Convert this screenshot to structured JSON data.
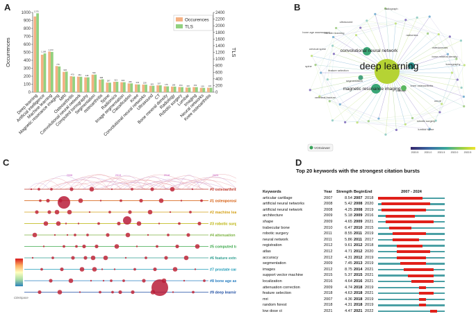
{
  "panels": {
    "a": {
      "letter": "A"
    },
    "b": {
      "letter": "B"
    },
    "c": {
      "letter": "C"
    },
    "d": {
      "letter": "D"
    }
  },
  "chart_data": [
    {
      "type": "bar",
      "panel": "A",
      "xlabel": "",
      "ylabel": "Occurrences",
      "y2label": "TLS",
      "ylim": [
        0,
        1000
      ],
      "y2lim": [
        0,
        2400
      ],
      "yticks": [
        "0",
        "100",
        "200",
        "300",
        "400",
        "500",
        "600",
        "700",
        "800",
        "900",
        "1000"
      ],
      "y2ticks": [
        "0",
        "200",
        "400",
        "600",
        "800",
        "1000",
        "1200",
        "1400",
        "1600",
        "1800",
        "2000",
        "2200",
        "2400"
      ],
      "legend": [
        "Occurences",
        "TLS"
      ],
      "legend_position": "top-right",
      "colors": {
        "occurrences": "#f4b183",
        "tls": "#92d17f"
      },
      "categories": [
        "Deep learning",
        "Artificial intelligence",
        "Machine learning",
        "Magnetic resonance imaging",
        "MRI",
        "Osteoarthritis",
        "Convolutional neural network",
        "Computed tomography",
        "Segmentation",
        "osteoarthritis",
        "Spine",
        "Radiomics",
        "Image segmentation",
        "Classification",
        "Knee",
        "Convolutional neural networks",
        "Ultrasound",
        "CT",
        "Bone mineral density",
        "Radiology",
        "Robotic surgery",
        "Lumbar",
        "Imaging",
        "Neural networks",
        "Knee osteoarthritis"
      ],
      "series": [
        {
          "name": "Occurences",
          "values": [
            950,
            470,
            510,
            328,
            255,
            200,
            195,
            186,
            220,
            158,
            120,
            130,
            125,
            110,
            98,
            95,
            80,
            86,
            74,
            70,
            65,
            58,
            64,
            54,
            56
          ]
        },
        {
          "name": "TLS",
          "values": [
            2375,
            1168,
            1213,
            775,
            620,
            470,
            464,
            448,
            530,
            388,
            287,
            313,
            300,
            266,
            233,
            228,
            193,
            207,
            176,
            168,
            154,
            140,
            152,
            129,
            134
          ]
        }
      ],
      "data_labels": [
        "2,375",
        "1,168",
        "1,213",
        "775",
        "620",
        "470",
        "464",
        "448",
        "530",
        "388",
        "287",
        "313",
        "300",
        "266",
        "233",
        "228",
        "193",
        "207",
        "176",
        "168",
        "154",
        "140",
        "152",
        "129",
        "134"
      ]
    },
    {
      "type": "network",
      "panel": "B",
      "labels": [
        "deep learning",
        "convolutional neural network",
        "magnetic resonance imaging",
        "radiograph",
        "feature selection",
        "cartilage",
        "osteoporosis",
        "bone mineral density",
        "tomography",
        "segmentation",
        "knee osteoarthritis",
        "transfer learning",
        "lumbar spine",
        "bone age assessment",
        "robotic surgery",
        "nerve",
        "vertebral fracture",
        "ultrasound",
        "radiomics",
        "spine",
        "cervical spine"
      ],
      "brand": "VOSviewer",
      "colorbar_ticks": [
        "2020.5",
        "2021.0",
        "2021.5",
        "2022.0",
        "2022.5"
      ]
    },
    {
      "type": "timeline",
      "panel": "C",
      "clusters": [
        "#0 osteoarthritis",
        "#1 osteoporosis",
        "#2 machine learning",
        "#3 robotic surgery",
        "#4 attenuation correction",
        "#5 computed tomography",
        "#6 feature extraction",
        "#7 prostate cancer",
        "#8 bone age assessment",
        "#9 deep learning"
      ],
      "cluster_colors": [
        "#c0392b",
        "#d35400",
        "#d4a017",
        "#b8b000",
        "#7cb342",
        "#3aa84a",
        "#2e9e8f",
        "#1f9bb8",
        "#2a7fc1",
        "#1f4ea3"
      ],
      "years": [
        "2008",
        "2013",
        "2018",
        "2023"
      ],
      "logo": "CiteSpace"
    },
    {
      "type": "table",
      "panel": "D",
      "title": "Top 20 keywords with the strongest citation bursts",
      "columns": [
        "Keywords",
        "Year",
        "Strength",
        "Begin",
        "End",
        "2007 - 2024"
      ],
      "range": [
        2007,
        2024
      ],
      "rows": [
        {
          "keyword": "articular cartilage",
          "year": "2007",
          "strength": "8.54",
          "begin": "2007",
          "end": "2018",
          "b": 2007,
          "e": 2018
        },
        {
          "keyword": "artificial neural networks",
          "year": "2008",
          "strength": "5.42",
          "begin": "2008",
          "end": "2020",
          "b": 2008,
          "e": 2020
        },
        {
          "keyword": "artificial neural network",
          "year": "2008",
          "strength": "4.25",
          "begin": "2008",
          "end": "2019",
          "b": 2008,
          "e": 2019
        },
        {
          "keyword": "architecture",
          "year": "2009",
          "strength": "5.18",
          "begin": "2009",
          "end": "2016",
          "b": 2009,
          "e": 2016
        },
        {
          "keyword": "shape",
          "year": "2009",
          "strength": "4.65",
          "begin": "2009",
          "end": "2021",
          "b": 2009,
          "e": 2021
        },
        {
          "keyword": "trabecular bone",
          "year": "2010",
          "strength": "6.47",
          "begin": "2010",
          "end": "2015",
          "b": 2010,
          "e": 2015
        },
        {
          "keyword": "robotic surgery",
          "year": "2011",
          "strength": "8.55",
          "begin": "2011",
          "end": "2019",
          "b": 2011,
          "e": 2019
        },
        {
          "keyword": "neural network",
          "year": "2011",
          "strength": "5.86",
          "begin": "2011",
          "end": "2017",
          "b": 2011,
          "e": 2017
        },
        {
          "keyword": "registration",
          "year": "2012",
          "strength": "9.61",
          "begin": "2012",
          "end": "2018",
          "b": 2012,
          "e": 2018
        },
        {
          "keyword": "atlas",
          "year": "2012",
          "strength": "4.71",
          "begin": "2012",
          "end": "2020",
          "b": 2012,
          "e": 2020
        },
        {
          "keyword": "accuracy",
          "year": "2012",
          "strength": "4.31",
          "begin": "2012",
          "end": "2019",
          "b": 2012,
          "e": 2019
        },
        {
          "keyword": "segmentation",
          "year": "2009",
          "strength": "7.45",
          "begin": "2013",
          "end": "2019",
          "b": 2013,
          "e": 2019
        },
        {
          "keyword": "images",
          "year": "2012",
          "strength": "8.75",
          "begin": "2014",
          "end": "2021",
          "b": 2014,
          "e": 2021
        },
        {
          "keyword": "support vector machine",
          "year": "2015",
          "strength": "5.37",
          "begin": "2015",
          "end": "2021",
          "b": 2015,
          "e": 2021
        },
        {
          "keyword": "localization",
          "year": "2016",
          "strength": "4.64",
          "begin": "2016",
          "end": "2021",
          "b": 2016,
          "e": 2021
        },
        {
          "keyword": "attenuation correction",
          "year": "2009",
          "strength": "4.74",
          "begin": "2018",
          "end": "2019",
          "b": 2018,
          "e": 2019
        },
        {
          "keyword": "feature selection",
          "year": "2018",
          "strength": "4.63",
          "begin": "2018",
          "end": "2021",
          "b": 2018,
          "e": 2021
        },
        {
          "keyword": "mri",
          "year": "2007",
          "strength": "4.36",
          "begin": "2018",
          "end": "2019",
          "b": 2018,
          "e": 2019
        },
        {
          "keyword": "random forest",
          "year": "2018",
          "strength": "4.31",
          "begin": "2018",
          "end": "2019",
          "b": 2018,
          "e": 2019
        },
        {
          "keyword": "low dose ct",
          "year": "2021",
          "strength": "4.47",
          "begin": "2021",
          "end": "2022",
          "b": 2021,
          "e": 2022
        }
      ]
    }
  ]
}
